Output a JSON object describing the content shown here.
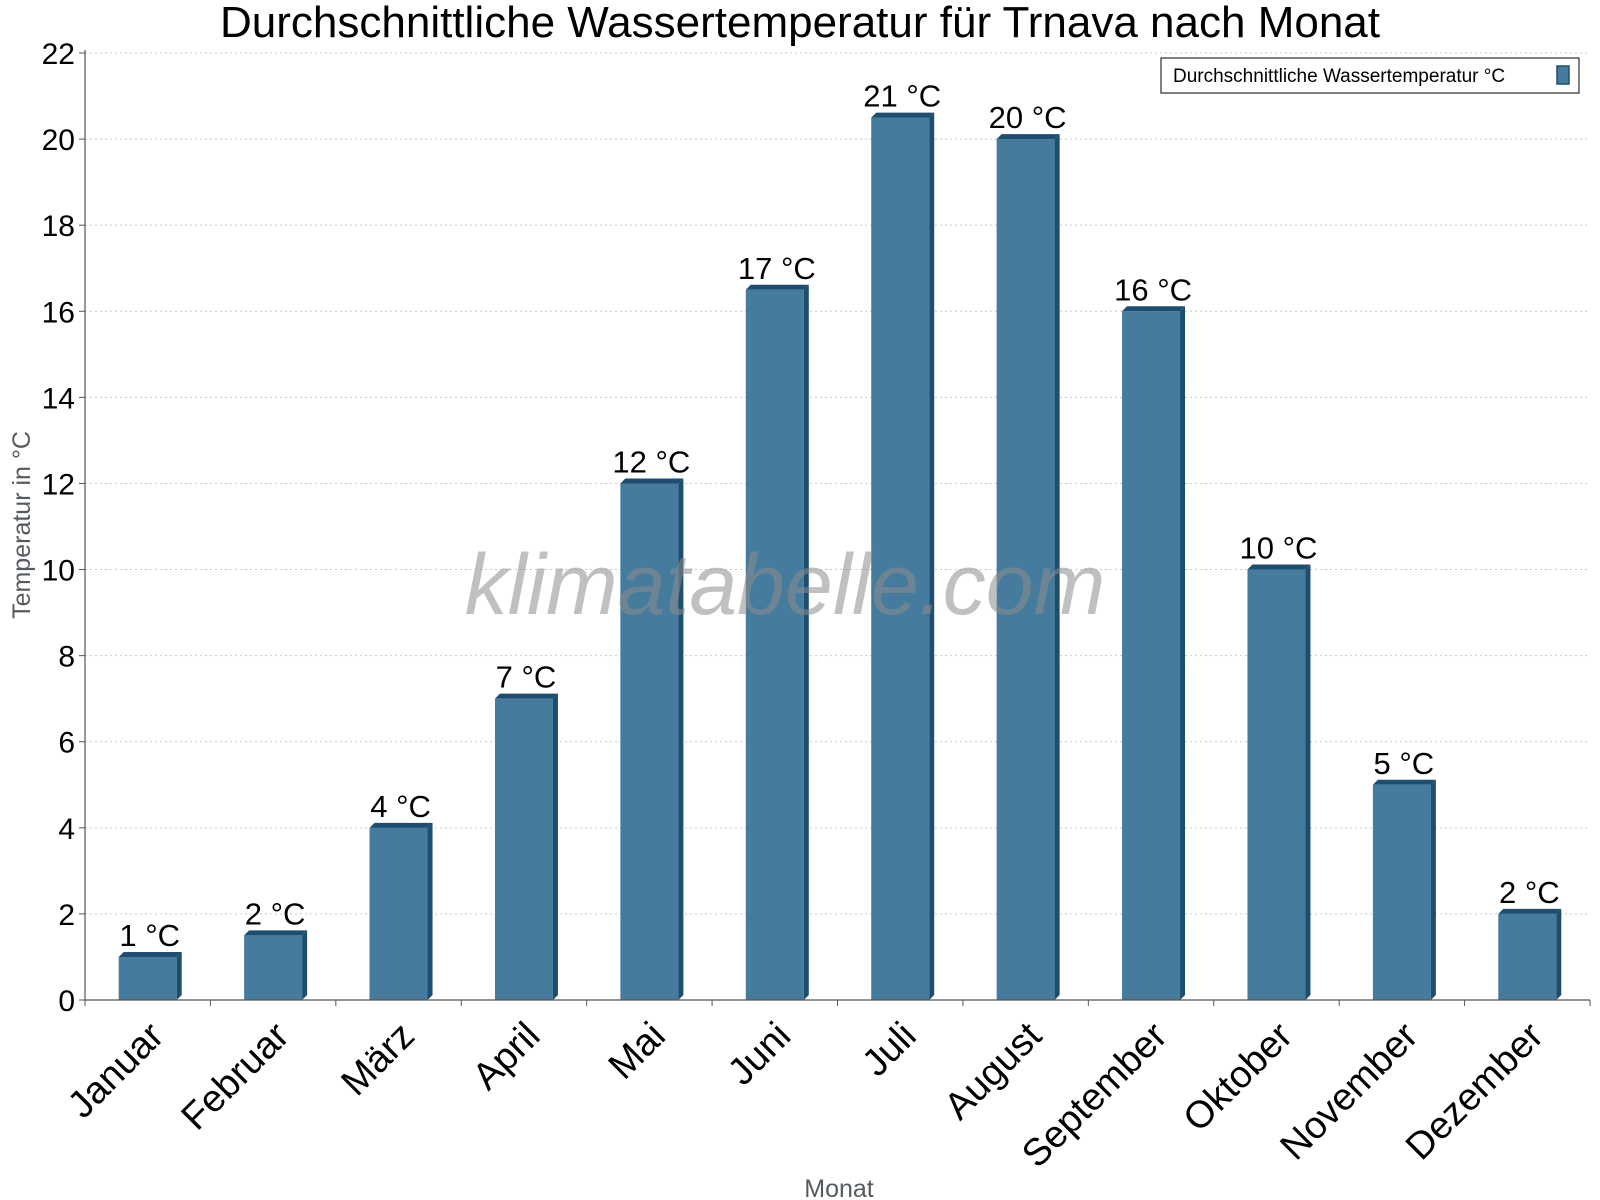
{
  "chart_data": {
    "type": "bar",
    "title": "Durchschnittliche Wassertemperatur für Trnava nach Monat",
    "xlabel": "Monat",
    "ylabel": "Temperatur in °C",
    "ylim": [
      0,
      22
    ],
    "yticks": [
      0,
      2,
      4,
      6,
      8,
      10,
      12,
      14,
      16,
      18,
      20,
      22
    ],
    "grid": true,
    "legend_position": "top-right",
    "categories": [
      "Januar",
      "Februar",
      "März",
      "April",
      "Mai",
      "Juni",
      "Juli",
      "August",
      "September",
      "Oktober",
      "November",
      "Dezember"
    ],
    "series": [
      {
        "name": "Durchschnittliche Wassertemperatur °C",
        "values": [
          1,
          1.5,
          4,
          7,
          12,
          16.5,
          20.5,
          20,
          16,
          10,
          5,
          2
        ],
        "labels": [
          "1 °C",
          "2 °C",
          "4 °C",
          "7 °C",
          "12 °C",
          "17 °C",
          "21 °C",
          "20 °C",
          "16 °C",
          "10 °C",
          "5 °C",
          "2 °C"
        ],
        "color": "#457b9d",
        "edge_color": "#1d4e6e"
      }
    ],
    "watermark": "klimatabelle.com"
  }
}
